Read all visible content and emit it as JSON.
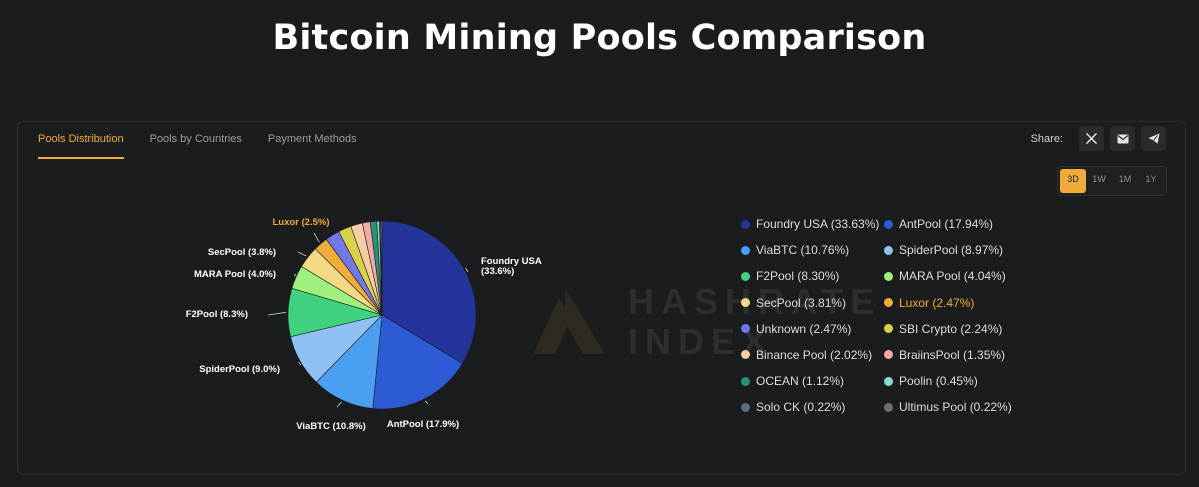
{
  "page": {
    "title": "Bitcoin Mining Pools Comparison"
  },
  "tabs": [
    {
      "label": "Pools Distribution",
      "active": true
    },
    {
      "label": "Pools by Countries",
      "active": false
    },
    {
      "label": "Payment Methods",
      "active": false
    }
  ],
  "share": {
    "label": "Share:",
    "buttons": [
      {
        "icon": "x-icon"
      },
      {
        "icon": "email-icon"
      },
      {
        "icon": "telegram-icon"
      }
    ]
  },
  "range": {
    "options": [
      "3D",
      "1W",
      "1M",
      "1Y"
    ],
    "selected": "3D"
  },
  "watermark": {
    "line1": "HASHRATE",
    "line2": "INDEX"
  },
  "chart_data": {
    "type": "pie",
    "title": "",
    "slices": [
      {
        "name": "Foundry USA",
        "value": 33.63,
        "legend": "Foundry USA (33.63%)",
        "pie_label": "Foundry USA",
        "pie_label2": "(33.6%)",
        "color": "#23359b"
      },
      {
        "name": "AntPool",
        "value": 17.94,
        "legend": "AntPool (17.94%)",
        "pie_label": "AntPool (17.9%)",
        "color": "#2d5bd6"
      },
      {
        "name": "ViaBTC",
        "value": 10.76,
        "legend": "ViaBTC (10.76%)",
        "pie_label": "ViaBTC (10.8%)",
        "color": "#4a9ff0"
      },
      {
        "name": "SpiderPool",
        "value": 8.97,
        "legend": "SpiderPool (8.97%)",
        "pie_label": "SpiderPool (9.0%)",
        "color": "#8fc2f3"
      },
      {
        "name": "F2Pool",
        "value": 8.3,
        "legend": "F2Pool (8.30%)",
        "pie_label": "F2Pool (8.3%)",
        "color": "#3fd17e"
      },
      {
        "name": "MARA Pool",
        "value": 4.04,
        "legend": "MARA Pool (4.04%)",
        "pie_label": "MARA Pool (4.0%)",
        "color": "#9ef07f"
      },
      {
        "name": "SecPool",
        "value": 3.81,
        "legend": "SecPool (3.81%)",
        "pie_label": "SecPool (3.8%)",
        "color": "#f6d985"
      },
      {
        "name": "Luxor",
        "value": 2.47,
        "legend": "Luxor (2.47%)",
        "pie_label": "Luxor (2.5%)",
        "color": "#f0ac3a",
        "highlight": true
      },
      {
        "name": "Unknown",
        "value": 2.47,
        "legend": "Unknown (2.47%)",
        "color": "#7178e8"
      },
      {
        "name": "SBI Crypto",
        "value": 2.24,
        "legend": "SBI Crypto (2.24%)",
        "color": "#d8d24a"
      },
      {
        "name": "Binance Pool",
        "value": 2.02,
        "legend": "Binance Pool (2.02%)",
        "color": "#f5cfa2"
      },
      {
        "name": "BraiinsPool",
        "value": 1.35,
        "legend": "BraiinsPool (1.35%)",
        "color": "#f4a9a9"
      },
      {
        "name": "OCEAN",
        "value": 1.12,
        "legend": "OCEAN (1.12%)",
        "color": "#27917a"
      },
      {
        "name": "Poolin",
        "value": 0.45,
        "legend": "Poolin (0.45%)",
        "color": "#8ed8cf"
      },
      {
        "name": "Solo CK",
        "value": 0.22,
        "legend": "Solo CK (0.22%)",
        "color": "#5b6b82"
      },
      {
        "name": "Ultimus Pool",
        "value": 0.22,
        "legend": "Ultimus Pool (0.22%)",
        "color": "#6f6f6f"
      }
    ],
    "legend_position": "right",
    "label_color": "#ffffff",
    "highlight_color": "#f0ac3a"
  },
  "colors": {
    "background": "#1b1c1d",
    "accent": "#f0ac3a"
  }
}
